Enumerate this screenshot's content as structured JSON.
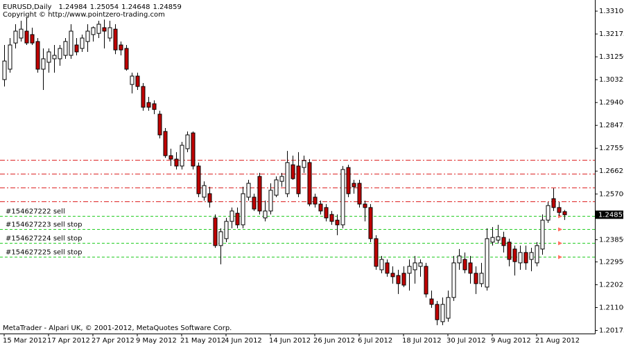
{
  "chart_data": {
    "type": "candlestick",
    "title": "EURUSD,Daily",
    "subtitle": "Copyright © http://www.pointzero-trading.com",
    "footer": "MetaTrader - Alpari UK, © 2001-2012, MetaQuotes Software Corp.",
    "categories": [
      "15 Mar 2012",
      null,
      null,
      null,
      null,
      null,
      null,
      null,
      "17 Apr 2012",
      null,
      null,
      null,
      null,
      null,
      null,
      null,
      "27 Apr 2012",
      null,
      null,
      null,
      null,
      null,
      null,
      null,
      "9 May 2012",
      null,
      null,
      null,
      null,
      null,
      null,
      null,
      "21 May 2012",
      null,
      null,
      null,
      null,
      null,
      null,
      null,
      "4 Jun 2012",
      null,
      null,
      null,
      null,
      null,
      null,
      null,
      "14 Jun 2012",
      null,
      null,
      null,
      null,
      null,
      null,
      null,
      "26 Jun 2012",
      null,
      null,
      null,
      null,
      null,
      null,
      null,
      "6 Jul 2012",
      null,
      null,
      null,
      null,
      null,
      null,
      null,
      "18 Jul 2012",
      null,
      null,
      null,
      null,
      null,
      null,
      null,
      "30 Jul 2012",
      null,
      null,
      null,
      null,
      null,
      null,
      null,
      "9 Aug 2012",
      null,
      null,
      null,
      null,
      null,
      null,
      null,
      "21 Aug 2012",
      null,
      null,
      null,
      null,
      null
    ],
    "open": [
      1.3033,
      1.3075,
      1.3181,
      1.3201,
      1.3229,
      1.3215,
      1.3187,
      1.3075,
      1.3103,
      1.3117,
      1.3117,
      1.3131,
      1.3131,
      1.3173,
      1.3159,
      1.3187,
      1.3215,
      1.322,
      1.3243,
      1.3201,
      1.3237,
      1.3173,
      1.3159,
      1.3013,
      1.3047,
      1.3005,
      1.294,
      1.2935,
      1.2893,
      1.2823,
      1.2725,
      1.2711,
      1.2683,
      1.2753,
      1.2817,
      1.2683,
      1.2557,
      1.2571,
      1.2473,
      1.2361,
      1.2389,
      1.2459,
      1.2492,
      1.2445,
      1.2557,
      1.2557,
      1.2641,
      1.2473,
      1.2501,
      1.2565,
      1.2621,
      1.2571,
      1.2688,
      1.2683,
      1.2677,
      1.2697,
      1.2557,
      1.2529,
      1.2515,
      1.2487,
      1.2464,
      1.2445,
      1.2677,
      1.2613,
      1.2613,
      1.2529,
      1.2515,
      1.2389,
      1.2263,
      1.2291,
      1.2249,
      1.224,
      1.2249,
      1.2249,
      1.2263,
      1.2277,
      1.2277,
      1.2145,
      1.2123,
      1.2053,
      1.2067,
      1.2151,
      1.2291,
      1.2305,
      1.2291,
      1.2249,
      1.2207,
      1.2193,
      1.2375,
      1.2383,
      1.2394,
      1.2375,
      1.2347,
      1.2291,
      1.2333,
      1.2305,
      1.2291,
      1.2347,
      1.2464,
      1.2551,
      1.2515,
      1.24984
    ],
    "high": [
      1.3173,
      1.3201,
      1.3257,
      1.3271,
      1.3285,
      1.3243,
      1.3201,
      1.3159,
      1.3159,
      1.3173,
      1.3173,
      1.3201,
      1.3257,
      1.3201,
      1.3215,
      1.3257,
      1.3248,
      1.3271,
      1.3276,
      1.3271,
      1.3257,
      1.3187,
      1.3173,
      1.3061,
      1.3061,
      1.3019,
      1.2963,
      1.2949,
      1.2907,
      1.2837,
      1.2753,
      1.2739,
      1.2781,
      1.2823,
      1.2823,
      1.2697,
      1.2621,
      1.2599,
      1.2487,
      1.2431,
      1.2473,
      1.2515,
      1.2515,
      1.2599,
      1.2627,
      1.2571,
      1.2655,
      1.2543,
      1.2613,
      1.2641,
      1.2655,
      1.2744,
      1.2725,
      1.2739,
      1.2725,
      1.2711,
      1.2571,
      1.2543,
      1.2529,
      1.2501,
      1.2487,
      1.2683,
      1.2688,
      1.2627,
      1.2627,
      1.2543,
      1.2529,
      1.2403,
      1.2319,
      1.2305,
      1.2277,
      1.2263,
      1.2277,
      1.2305,
      1.2319,
      1.2305,
      1.2291,
      1.2179,
      1.2137,
      1.2151,
      1.2179,
      1.2319,
      1.2347,
      1.2333,
      1.2319,
      1.2277,
      1.2291,
      1.2431,
      1.2436,
      1.2445,
      1.2417,
      1.2389,
      1.2361,
      1.2361,
      1.2361,
      1.2352,
      1.2375,
      1.2487,
      1.2537,
      1.2593,
      1.2537,
      1.25054
    ],
    "low": [
      1.3005,
      1.3061,
      1.3159,
      1.3187,
      1.3173,
      1.3173,
      1.3061,
      1.2991,
      1.3061,
      1.3061,
      1.3089,
      1.3117,
      1.3117,
      1.3131,
      1.3145,
      1.3145,
      1.3187,
      1.3201,
      1.3159,
      1.3187,
      1.3136,
      1.3131,
      1.3069,
      1.2977,
      1.2991,
      1.2907,
      1.2907,
      1.2893,
      1.2795,
      1.2716,
      1.2683,
      1.2669,
      1.2669,
      1.2739,
      1.2669,
      1.2557,
      1.2543,
      1.2515,
      1.2352,
      1.2285,
      1.2375,
      1.2431,
      1.2431,
      1.2431,
      1.2543,
      1.2501,
      1.2487,
      1.2459,
      1.2487,
      1.2557,
      1.2599,
      1.2557,
      1.2627,
      1.2557,
      1.2655,
      1.252,
      1.2515,
      1.2487,
      1.2459,
      1.2445,
      1.2403,
      1.2431,
      1.2557,
      1.2571,
      1.2515,
      1.2459,
      1.2375,
      1.2263,
      1.2249,
      1.2235,
      1.2207,
      1.2165,
      1.2193,
      1.2179,
      1.2207,
      1.2235,
      1.2151,
      1.2109,
      1.2039,
      1.2039,
      1.2053,
      1.2137,
      1.2263,
      1.2249,
      1.2207,
      1.2165,
      1.2193,
      1.2179,
      1.2361,
      1.2369,
      1.2333,
      1.2277,
      1.224,
      1.2263,
      1.2263,
      1.2257,
      1.2277,
      1.2324,
      1.2453,
      1.2501,
      1.2481,
      1.24648
    ],
    "close": [
      1.3108,
      1.3173,
      1.3229,
      1.3237,
      1.3181,
      1.3181,
      1.3075,
      1.3117,
      1.3145,
      1.3131,
      1.3159,
      1.3187,
      1.3229,
      1.3145,
      1.3201,
      1.3229,
      1.3243,
      1.3257,
      1.3229,
      1.3243,
      1.3153,
      1.3153,
      1.3075,
      1.3047,
      1.3005,
      1.2921,
      1.2921,
      1.2912,
      1.2809,
      1.2725,
      1.2711,
      1.2683,
      1.2767,
      1.2809,
      1.2683,
      1.2571,
      1.2604,
      1.2537,
      1.2361,
      1.2417,
      1.2459,
      1.2501,
      1.2445,
      1.2571,
      1.2613,
      1.2509,
      1.2501,
      1.2501,
      1.2585,
      1.2627,
      1.2641,
      1.2697,
      1.2632,
      1.2571,
      1.2705,
      1.2529,
      1.2529,
      1.2501,
      1.2473,
      1.2459,
      1.2445,
      1.2669,
      1.2571,
      1.2599,
      1.2529,
      1.2515,
      1.2389,
      1.2277,
      1.2305,
      1.2249,
      1.2235,
      1.2207,
      1.2201,
      1.2277,
      1.2291,
      1.2291,
      1.2165,
      1.2123,
      1.2061,
      1.2123,
      1.2151,
      1.2291,
      1.2319,
      1.2263,
      1.2249,
      1.2207,
      1.2249,
      1.2389,
      1.2394,
      1.2397,
      1.2361,
      1.2305,
      1.2296,
      1.2333,
      1.2291,
      1.2333,
      1.2361,
      1.2464,
      1.2523,
      1.2515,
      1.2495,
      1.24859
    ],
    "up_color": "#ffffff",
    "down_color": "#c00000",
    "wick_color": "#000000",
    "ylim": [
      1.2005,
      1.3341
    ],
    "yticks": [
      {
        "value": 1.331,
        "label": "1.33100"
      },
      {
        "value": 1.32175,
        "label": "1.32175"
      },
      {
        "value": 1.3125,
        "label": "1.31250"
      },
      {
        "value": 1.30325,
        "label": "1.30325"
      },
      {
        "value": 1.294,
        "label": "1.29400"
      },
      {
        "value": 1.28475,
        "label": "1.28475"
      },
      {
        "value": 1.2755,
        "label": "1.27550"
      },
      {
        "value": 1.26625,
        "label": "1.26625"
      },
      {
        "value": 1.257,
        "label": "1.25700"
      },
      {
        "value": 1.2385,
        "label": "1.23850"
      },
      {
        "value": 1.2295,
        "label": "1.22950"
      },
      {
        "value": 1.22025,
        "label": "1.22025"
      },
      {
        "value": 1.211,
        "label": "1.21100"
      },
      {
        "value": 1.20175,
        "label": "1.20175"
      }
    ],
    "orders": [
      {
        "label": "#154627222 sell",
        "price": 1.2481
      },
      {
        "label": "#154627223 sell stop",
        "price": 1.2428
      },
      {
        "label": "#154627224 sell stop",
        "price": 1.2372
      },
      {
        "label": "#154627225 sell stop",
        "price": 1.2316
      }
    ],
    "order_color": "#22cc22",
    "stop_levels": [
      1.2708,
      1.2652,
      1.2596,
      1.254
    ],
    "stop_color": "#dd2222"
  }
}
